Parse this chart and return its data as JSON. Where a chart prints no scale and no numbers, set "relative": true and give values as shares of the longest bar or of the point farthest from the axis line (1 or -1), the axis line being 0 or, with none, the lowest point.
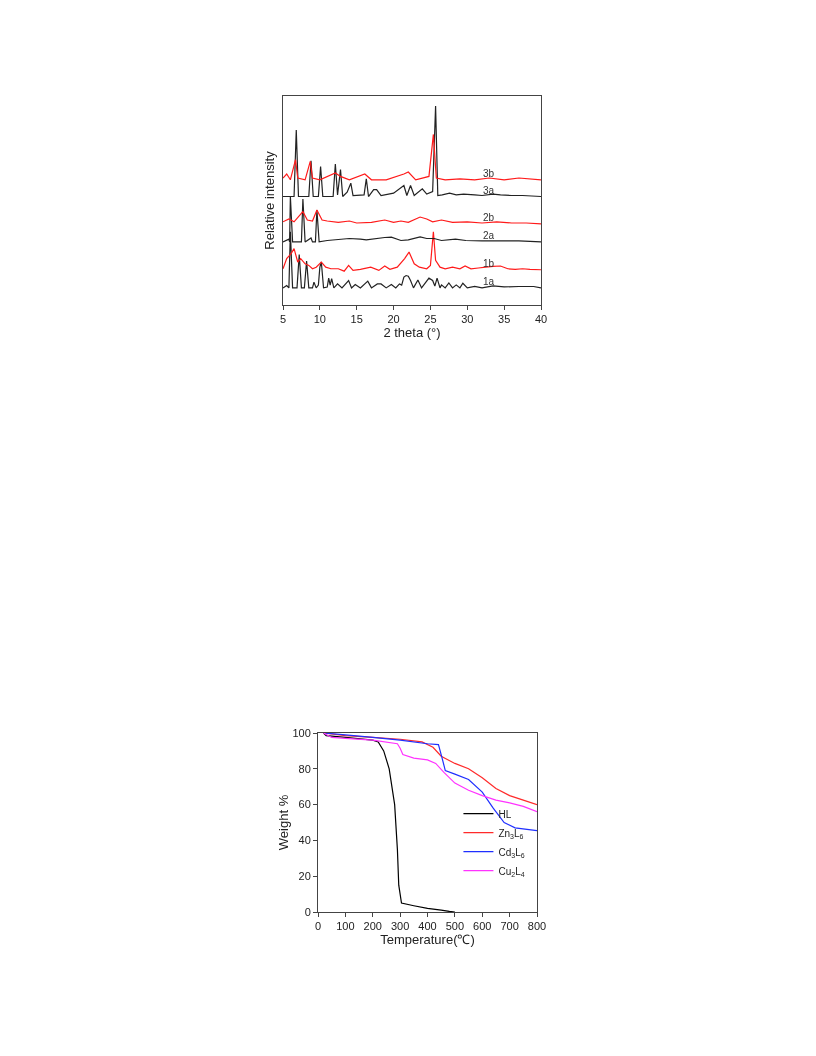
{
  "chart_data": [
    {
      "type": "line",
      "relative": true,
      "xlabel": "2 theta (°)",
      "ylabel": "Relative intensity",
      "xlim": [
        5,
        40
      ],
      "xticks": [
        5,
        10,
        15,
        20,
        25,
        30,
        35,
        40
      ],
      "tick_labels": "x",
      "legend": false,
      "grid": false,
      "series": [
        {
          "name": "1a",
          "color": "#222222",
          "x": [
            5,
            5.5,
            5.8,
            6.0,
            6.3,
            6.9,
            7.2,
            7.5,
            7.9,
            8.2,
            8.5,
            9.0,
            9.2,
            9.5,
            9.8,
            10.0,
            10.2,
            10.5,
            11.0,
            11.2,
            11.4,
            11.6,
            11.9,
            12.4,
            13.0,
            13.9,
            14.3,
            14.8,
            15.5,
            16.5,
            17.0,
            17.8,
            18.3,
            19.0,
            19.7,
            20.3,
            20.8,
            21.1,
            21.4,
            21.7,
            22.0,
            22.3,
            22.7,
            23.3,
            23.8,
            24.8,
            25.3,
            25.6,
            25.9,
            26.3,
            26.5,
            27.0,
            27.5,
            28.0,
            28.5,
            29.0,
            29.4,
            30.0,
            31.0,
            32.0,
            33.5,
            35.0,
            37.0,
            39.0,
            40.0
          ],
          "values": [
            0.086,
            0.098,
            0.086,
            0.368,
            0.086,
            0.086,
            0.253,
            0.086,
            0.086,
            0.221,
            0.086,
            0.086,
            0.115,
            0.086,
            0.1,
            0.19,
            0.216,
            0.086,
            0.09,
            0.135,
            0.1,
            0.132,
            0.086,
            0.106,
            0.086,
            0.123,
            0.086,
            0.103,
            0.086,
            0.12,
            0.086,
            0.106,
            0.106,
            0.086,
            0.103,
            0.086,
            0.106,
            0.1,
            0.14,
            0.148,
            0.145,
            0.123,
            0.086,
            0.126,
            0.086,
            0.135,
            0.123,
            0.095,
            0.135,
            0.086,
            0.101,
            0.086,
            0.111,
            0.086,
            0.101,
            0.086,
            0.109,
            0.086,
            0.094,
            0.086,
            0.096,
            0.091,
            0.093,
            0.093,
            0.086
          ]
        },
        {
          "name": "1b",
          "color": "#ff1a1a",
          "x": [
            5,
            5.5,
            6.1,
            6.5,
            7.0,
            7.4,
            8.0,
            8.5,
            9.0,
            9.5,
            10.2,
            10.8,
            11.5,
            12.5,
            13.3,
            13.9,
            14.5,
            15.5,
            16.9,
            18.0,
            18.8,
            19.5,
            20.5,
            21.5,
            22.1,
            22.8,
            23.5,
            24.5,
            25.0,
            25.4,
            25.7,
            26.3,
            27.0,
            28.0,
            29.0,
            29.7,
            30.5,
            31.5,
            32.5,
            33.5,
            34.5,
            35.5,
            36.5,
            37.5,
            38.5,
            40.0
          ],
          "values": [
            0.182,
            0.233,
            0.258,
            0.283,
            0.216,
            0.233,
            0.207,
            0.199,
            0.182,
            0.19,
            0.216,
            0.19,
            0.182,
            0.182,
            0.17,
            0.199,
            0.174,
            0.179,
            0.19,
            0.174,
            0.196,
            0.179,
            0.19,
            0.233,
            0.266,
            0.207,
            0.19,
            0.182,
            0.199,
            0.368,
            0.224,
            0.19,
            0.182,
            0.19,
            0.182,
            0.196,
            0.182,
            0.186,
            0.19,
            0.194,
            0.196,
            0.182,
            0.179,
            0.182,
            0.179,
            0.177
          ]
        },
        {
          "name": "2a",
          "color": "#222222",
          "x": [
            5,
            5.8,
            5.9,
            6.0,
            6.3,
            7.5,
            7.7,
            8.0,
            8.8,
            9.0,
            9.4,
            9.6,
            9.9,
            11.0,
            14.0,
            15.5,
            16.3,
            18.8,
            19.7,
            21.0,
            22.0,
            23.6,
            24.5,
            25.5,
            26.5,
            28.4,
            29.8,
            32.0,
            35.0,
            37.0,
            40.0
          ],
          "values": [
            0.317,
            0.331,
            0.317,
            0.545,
            0.317,
            0.317,
            0.533,
            0.317,
            0.337,
            0.317,
            0.317,
            0.477,
            0.317,
            0.324,
            0.334,
            0.331,
            0.327,
            0.339,
            0.341,
            0.324,
            0.327,
            0.342,
            0.334,
            0.334,
            0.324,
            0.331,
            0.324,
            0.322,
            0.322,
            0.322,
            0.317
          ]
        },
        {
          "name": "2b",
          "color": "#ff1a1a",
          "x": [
            5,
            5.8,
            6.5,
            7.7,
            8.3,
            9.0,
            9.6,
            10.3,
            11.0,
            12.5,
            14.0,
            15.0,
            17.0,
            18.8,
            20.0,
            21.0,
            22.0,
            23.6,
            24.5,
            25.3,
            26.5,
            28.0,
            30.0,
            32.0,
            34.0,
            36.0,
            38.0,
            40.0
          ],
          "values": [
            0.418,
            0.432,
            0.418,
            0.469,
            0.427,
            0.422,
            0.477,
            0.427,
            0.422,
            0.415,
            0.422,
            0.412,
            0.415,
            0.427,
            0.415,
            0.422,
            0.415,
            0.442,
            0.432,
            0.418,
            0.427,
            0.415,
            0.418,
            0.412,
            0.418,
            0.412,
            0.412,
            0.408
          ]
        },
        {
          "name": "3a",
          "color": "#222222",
          "x": [
            5,
            6.5,
            6.8,
            7.1,
            8.5,
            8.8,
            9.1,
            9.8,
            10.1,
            10.4,
            11.8,
            12.1,
            12.4,
            12.8,
            13.1,
            13.7,
            14.2,
            14.5,
            16.0,
            16.3,
            16.6,
            17.3,
            17.7,
            18.3,
            20.0,
            21.4,
            21.8,
            22.3,
            22.8,
            23.9,
            24.5,
            25.3,
            25.7,
            26.0,
            26.6,
            27.6,
            28.5,
            29.5,
            31.0,
            32.0,
            33.5,
            34.5,
            36.0,
            37.5,
            40.0
          ],
          "values": [
            0.545,
            0.545,
            0.879,
            0.545,
            0.545,
            0.725,
            0.545,
            0.545,
            0.696,
            0.545,
            0.545,
            0.708,
            0.553,
            0.68,
            0.545,
            0.567,
            0.612,
            0.55,
            0.553,
            0.634,
            0.545,
            0.58,
            0.58,
            0.55,
            0.562,
            0.6,
            0.55,
            0.6,
            0.55,
            0.584,
            0.557,
            0.57,
            1.0,
            0.55,
            0.553,
            0.562,
            0.553,
            0.557,
            0.553,
            0.55,
            0.557,
            0.553,
            0.55,
            0.55,
            0.545
          ]
        },
        {
          "name": "3b",
          "color": "#ff1a1a",
          "x": [
            5,
            5.5,
            6.0,
            6.7,
            7.0,
            8.0,
            8.7,
            9.0,
            10.0,
            12.1,
            12.8,
            14.0,
            16.1,
            17.0,
            19.0,
            21.4,
            22.0,
            23.0,
            24.8,
            25.4,
            25.8,
            27.0,
            29.0,
            31.0,
            33.0,
            35.0,
            37.0,
            40.0
          ],
          "values": [
            0.638,
            0.658,
            0.629,
            0.73,
            0.638,
            0.629,
            0.722,
            0.638,
            0.629,
            0.663,
            0.646,
            0.629,
            0.658,
            0.629,
            0.629,
            0.658,
            0.668,
            0.629,
            0.646,
            0.857,
            0.638,
            0.629,
            0.634,
            0.629,
            0.638,
            0.629,
            0.638,
            0.629
          ]
        }
      ]
    },
    {
      "type": "line",
      "xlabel": "Temperature(℃)",
      "ylabel": "Weight %",
      "xlim": [
        0,
        800
      ],
      "xticks": [
        0,
        100,
        200,
        300,
        400,
        500,
        600,
        700,
        800
      ],
      "ylim": [
        0,
        100
      ],
      "yticks": [
        0,
        20,
        40,
        60,
        80,
        100
      ],
      "legend": "bottom right",
      "grid": false,
      "series": [
        {
          "name": "HL",
          "color": "#000000",
          "x": [
            20,
            30,
            100,
            200,
            220,
            240,
            260,
            280,
            290,
            295,
            305,
            350,
            400,
            450,
            480,
            500
          ],
          "values": [
            100,
            98.5,
            97.5,
            96,
            95,
            90,
            80,
            60,
            35,
            15,
            5,
            3.5,
            2,
            1,
            0.3,
            0
          ]
        },
        {
          "name": "Zn$_{3}$L$_{6}$",
          "color": "#ff2a2a",
          "x": [
            20,
            100,
            200,
            300,
            380,
            420,
            450,
            500,
            550,
            600,
            650,
            700,
            750,
            800
          ],
          "values": [
            100,
            98.5,
            97.5,
            96.5,
            95,
            92,
            87,
            83,
            80,
            75,
            69,
            65,
            62.5,
            60
          ]
        },
        {
          "name": "Cd$_{3}$L$_{6}$",
          "color": "#1f2fff",
          "x": [
            20,
            100,
            200,
            300,
            400,
            440,
            455,
            465,
            500,
            550,
            600,
            640,
            680,
            720,
            800
          ],
          "values": [
            100,
            99,
            97.5,
            96,
            94,
            93.5,
            85,
            79,
            77,
            74,
            67,
            58,
            50,
            47,
            45.5
          ]
        },
        {
          "name": "Cu$_{2}$L$_{4}$",
          "color": "#ff33ff",
          "x": [
            20,
            50,
            100,
            200,
            290,
            300,
            310,
            350,
            400,
            430,
            460,
            500,
            550,
            600,
            650,
            700,
            750,
            800
          ],
          "values": [
            100,
            97.5,
            97,
            96,
            94,
            91.5,
            88,
            86,
            85,
            83,
            78,
            72,
            68,
            65,
            62.5,
            61,
            59,
            56
          ]
        }
      ]
    }
  ]
}
